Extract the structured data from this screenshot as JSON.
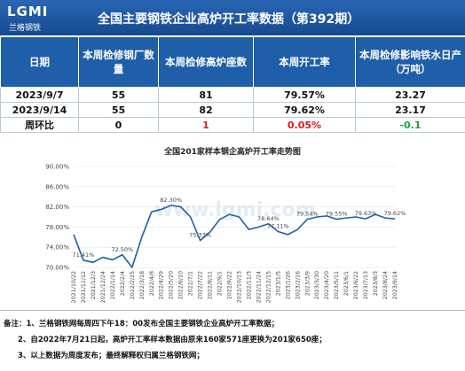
{
  "header": {
    "logo": "LGMI",
    "logo_sub": "兰格钢铁",
    "title": "全国主要钢铁企业高炉开工率数据（第392期）"
  },
  "table": {
    "columns": [
      "日期",
      "本周检修钢厂数量",
      "本周检修高炉座数",
      "本周开工率",
      "本周检修影响铁水日产（万吨）"
    ],
    "rows": [
      [
        "2023/9/7",
        "55",
        "81",
        "79.57%",
        "23.27"
      ],
      [
        "2023/9/14",
        "55",
        "82",
        "79.62%",
        "23.17"
      ],
      [
        "周环比",
        "0",
        "1",
        "0.05%",
        "-0.1"
      ]
    ]
  },
  "chart_data": {
    "type": "line",
    "title": "全国201家样本钢企高炉开工率走势图",
    "watermark": "www.lgmi.com",
    "color": "#1f5fa8",
    "categories": [
      "2021/10/22",
      "2021/11/12",
      "2021/12/3",
      "2021/12/24",
      "2022/1/14",
      "2022/2/4",
      "2022/2/25",
      "2022/3/18",
      "2022/4/8",
      "2022/4/29",
      "2022/5/20",
      "2022/6/10",
      "2022/7/1",
      "2022/7/22",
      "2022/8/11",
      "2022/9/1",
      "2022/9/22",
      "2022/10/13",
      "2022/11/3",
      "2022/11/24",
      "2022/12/15",
      "2023/1/5",
      "2023/1/26",
      "2023/2/16",
      "2023/3/9",
      "2023/3/30",
      "2023/4/20",
      "2023/5/11",
      "2023/6/1",
      "2023/6/22",
      "2023/7/13",
      "2023/8/3",
      "2023/8/24",
      "2023/9/14"
    ],
    "values": [
      76.5,
      71.41,
      71,
      72,
      71.5,
      72.5,
      70,
      76,
      81,
      81.5,
      82.3,
      82,
      80,
      75.33,
      77,
      79.5,
      80.5,
      80,
      77.5,
      78,
      78.64,
      77.11,
      76.5,
      77.5,
      79.54,
      80,
      80.2,
      79.55,
      79.8,
      80,
      79.63,
      80.5,
      79.8,
      79.62
    ],
    "value_labels": [
      null,
      "71.41%",
      null,
      null,
      null,
      "72.50%",
      null,
      null,
      null,
      null,
      "82.30%",
      null,
      null,
      "75.33%",
      null,
      null,
      null,
      null,
      null,
      null,
      "78.64%",
      "77.11%",
      null,
      null,
      "79.54%",
      null,
      null,
      "79.55%",
      null,
      null,
      "79.63%",
      null,
      null,
      "79.62%"
    ],
    "ylim": [
      70,
      90
    ],
    "yticks": [
      {
        "value": 70,
        "label": "70.00%"
      },
      {
        "value": 74,
        "label": "74.00%"
      },
      {
        "value": 78,
        "label": "78.00%"
      },
      {
        "value": 82,
        "label": "82.00%"
      },
      {
        "value": 86,
        "label": "86.00%"
      },
      {
        "value": 90,
        "label": "90.00%"
      }
    ]
  },
  "notes": [
    "备注：1、兰格钢铁网每周四下午18：00发布全国主要钢铁企业高炉开工率数据；",
    "2、自2022年7月21日起，高炉开工率样本数据由原来160家571座更换为201家650座；",
    "3、以上数据为周度发布；最终解释权归属兰格钢铁网；"
  ]
}
